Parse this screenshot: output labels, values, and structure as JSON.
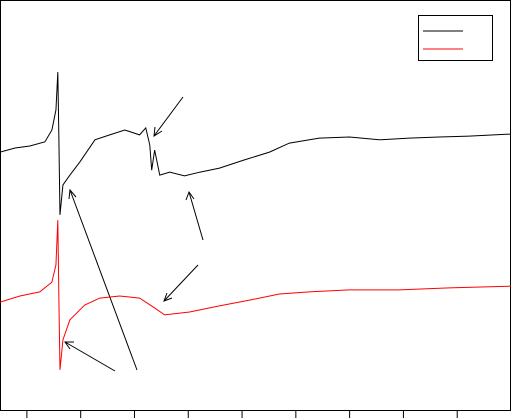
{
  "chart_data": {
    "type": "line",
    "series": [
      {
        "color": "#000000",
        "x": [
          0,
          0.56,
          1.11,
          1.67,
          1.93,
          2.08,
          2.15,
          2.19,
          2.23,
          2.34,
          2.6,
          2.97,
          3.53,
          4.08,
          4.64,
          5.19,
          5.42,
          5.57,
          5.64,
          5.75,
          5.94,
          6.31,
          6.86,
          7.42,
          8.16,
          9.09,
          10.02,
          10.76,
          11.87,
          12.99,
          14.1,
          15.21,
          16.33,
          17.44,
          19
        ],
        "values": [
          62.9,
          63.9,
          64.4,
          65.4,
          68.3,
          73.2,
          82.4,
          65.9,
          47.6,
          54.9,
          57.3,
          60.5,
          65.9,
          67.1,
          68.3,
          67.1,
          68.8,
          64.6,
          58.5,
          63.4,
          57.3,
          58.0,
          57.1,
          58.0,
          59.0,
          61.0,
          62.9,
          65.1,
          66.3,
          66.6,
          65.9,
          66.3,
          66.6,
          66.8,
          67.3
        ]
      },
      {
        "color": "#ff0000",
        "x": [
          0,
          0.74,
          1.48,
          1.93,
          2.08,
          2.15,
          2.19,
          2.23,
          2.34,
          2.6,
          3.15,
          3.71,
          4.45,
          5.19,
          5.75,
          6.12,
          7.05,
          8.16,
          9.28,
          10.39,
          11.5,
          12.99,
          14.84,
          16.7,
          19
        ],
        "values": [
          26.3,
          27.8,
          28.8,
          31.2,
          35.4,
          46.3,
          26.8,
          9.8,
          17.1,
          22.0,
          25.6,
          27.3,
          27.8,
          27.3,
          24.9,
          23.2,
          23.9,
          25.4,
          26.8,
          28.3,
          28.8,
          29.3,
          29.3,
          29.8,
          30.2
        ]
      }
    ],
    "xlim": [
      0,
      19
    ],
    "xticks": [
      1,
      3,
      5,
      7,
      9,
      11,
      13,
      15,
      17
    ],
    "ylim": [
      0,
      100
    ],
    "legend": "upper right"
  }
}
